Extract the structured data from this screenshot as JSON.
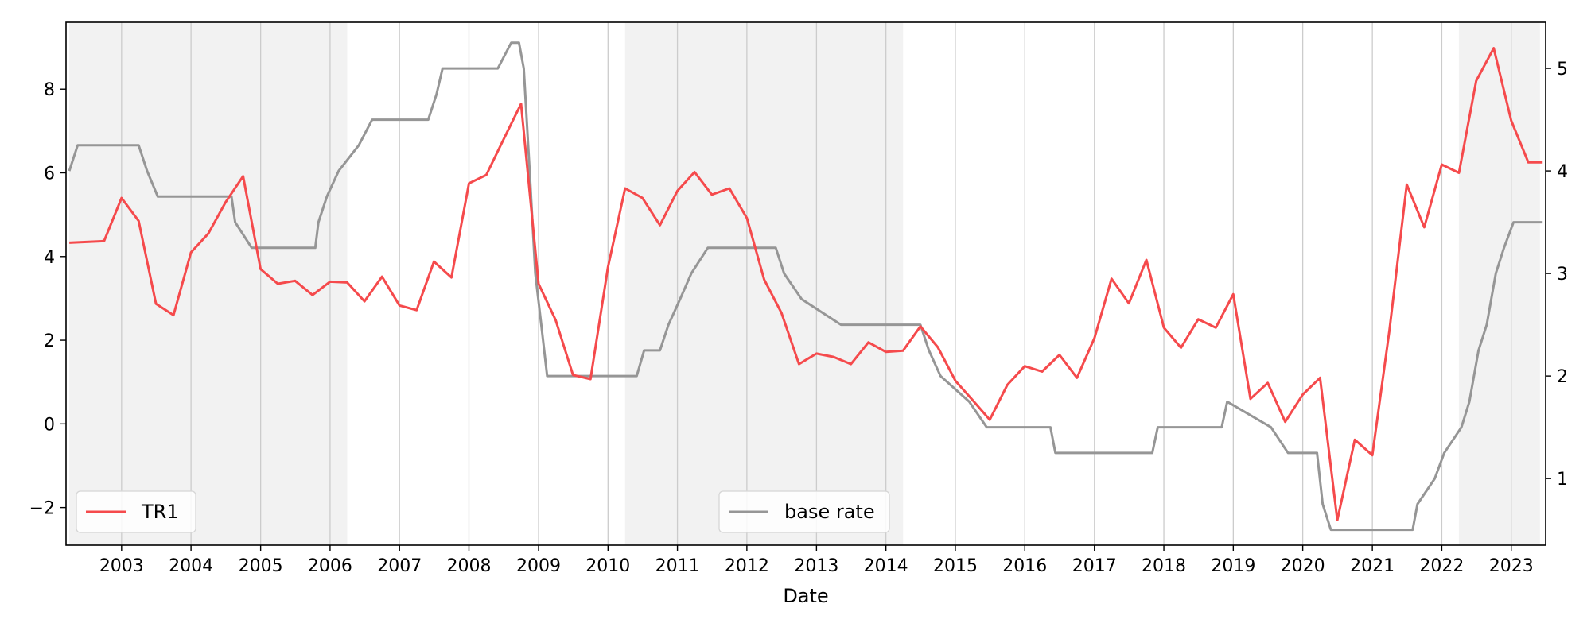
{
  "chart_data": {
    "type": "line",
    "title": "",
    "xlabel": "Date",
    "ylabel": "",
    "ylabel_right": "",
    "x_ticks": [
      "2003",
      "2004",
      "2005",
      "2006",
      "2007",
      "2008",
      "2009",
      "2010",
      "2011",
      "2012",
      "2013",
      "2014",
      "2015",
      "2016",
      "2017",
      "2018",
      "2019",
      "2020",
      "2021",
      "2022",
      "2023"
    ],
    "x_range": [
      "2002-03-15",
      "2023-07-01"
    ],
    "y_left": {
      "range": [
        -2.9,
        9.6
      ],
      "ticks": [
        -2,
        0,
        2,
        4,
        6,
        8
      ]
    },
    "y_right": {
      "range": [
        0.35,
        5.45
      ],
      "ticks": [
        1,
        2,
        3,
        4,
        5
      ]
    },
    "grid": {
      "x": true,
      "y": false
    },
    "shaded_periods": [
      [
        "2002-04-01",
        "2006-04-01"
      ],
      [
        "2010-04-01",
        "2014-04-01"
      ],
      [
        "2022-04-01",
        "2023-06-01"
      ]
    ],
    "colors": {
      "TR1": "#f54a4c",
      "base_rate": "#969696",
      "shade": "#f2f2f2",
      "grid": "#cccccc"
    },
    "legends": [
      {
        "label": "TR1",
        "position": "lower-left",
        "series": "TR1"
      },
      {
        "label": "base rate",
        "position": "lower-center",
        "series": "base_rate"
      }
    ],
    "series": [
      {
        "name": "TR1",
        "axis": "left",
        "points": [
          [
            "2002-04-01",
            4.33
          ],
          [
            "2002-07-01",
            4.35
          ],
          [
            "2002-10-01",
            4.37
          ],
          [
            "2003-01-01",
            5.4
          ],
          [
            "2003-04-01",
            4.85
          ],
          [
            "2003-07-01",
            2.87
          ],
          [
            "2003-10-01",
            2.6
          ],
          [
            "2004-01-01",
            4.1
          ],
          [
            "2004-04-01",
            4.55
          ],
          [
            "2004-07-01",
            5.3
          ],
          [
            "2004-10-01",
            5.92
          ],
          [
            "2005-01-01",
            3.7
          ],
          [
            "2005-04-01",
            3.35
          ],
          [
            "2005-07-01",
            3.42
          ],
          [
            "2005-10-01",
            3.08
          ],
          [
            "2006-01-01",
            3.4
          ],
          [
            "2006-04-01",
            3.38
          ],
          [
            "2006-07-01",
            2.93
          ],
          [
            "2006-10-01",
            3.52
          ],
          [
            "2007-01-01",
            2.83
          ],
          [
            "2007-04-01",
            2.72
          ],
          [
            "2007-07-01",
            3.88
          ],
          [
            "2007-10-01",
            3.5
          ],
          [
            "2008-01-01",
            5.75
          ],
          [
            "2008-04-01",
            5.95
          ],
          [
            "2008-07-01",
            6.8
          ],
          [
            "2008-10-01",
            7.65
          ],
          [
            "2009-01-01",
            3.35
          ],
          [
            "2009-04-01",
            2.48
          ],
          [
            "2009-07-01",
            1.17
          ],
          [
            "2009-10-01",
            1.07
          ],
          [
            "2010-01-01",
            3.75
          ],
          [
            "2010-04-01",
            5.63
          ],
          [
            "2010-07-01",
            5.4
          ],
          [
            "2010-10-01",
            4.75
          ],
          [
            "2011-01-01",
            5.57
          ],
          [
            "2011-04-01",
            6.02
          ],
          [
            "2011-07-01",
            5.48
          ],
          [
            "2011-10-01",
            5.63
          ],
          [
            "2012-01-01",
            4.92
          ],
          [
            "2012-04-01",
            3.45
          ],
          [
            "2012-07-01",
            2.65
          ],
          [
            "2012-10-01",
            1.43
          ],
          [
            "2013-01-01",
            1.68
          ],
          [
            "2013-04-01",
            1.6
          ],
          [
            "2013-07-01",
            1.43
          ],
          [
            "2013-10-01",
            1.95
          ],
          [
            "2014-01-01",
            1.72
          ],
          [
            "2014-04-01",
            1.75
          ],
          [
            "2014-07-01",
            2.33
          ],
          [
            "2014-10-01",
            1.83
          ],
          [
            "2015-01-01",
            1.03
          ],
          [
            "2015-04-01",
            0.57
          ],
          [
            "2015-07-01",
            0.1
          ],
          [
            "2015-10-01",
            0.93
          ],
          [
            "2016-01-01",
            1.38
          ],
          [
            "2016-04-01",
            1.25
          ],
          [
            "2016-07-01",
            1.65
          ],
          [
            "2016-10-01",
            1.1
          ],
          [
            "2017-01-01",
            2.05
          ],
          [
            "2017-04-01",
            3.47
          ],
          [
            "2017-07-01",
            2.88
          ],
          [
            "2017-10-01",
            3.92
          ],
          [
            "2018-01-01",
            2.3
          ],
          [
            "2018-04-01",
            1.82
          ],
          [
            "2018-07-01",
            2.5
          ],
          [
            "2018-10-01",
            2.3
          ],
          [
            "2019-01-01",
            3.1
          ],
          [
            "2019-04-01",
            0.6
          ],
          [
            "2019-07-01",
            0.98
          ],
          [
            "2019-10-01",
            0.05
          ],
          [
            "2020-01-01",
            0.7
          ],
          [
            "2020-04-01",
            1.1
          ],
          [
            "2020-07-01",
            -2.3
          ],
          [
            "2020-10-01",
            -0.38
          ],
          [
            "2021-01-01",
            -0.75
          ],
          [
            "2021-04-01",
            2.25
          ],
          [
            "2021-07-01",
            5.72
          ],
          [
            "2021-10-01",
            4.7
          ],
          [
            "2022-01-01",
            6.2
          ],
          [
            "2022-04-01",
            6.0
          ],
          [
            "2022-07-01",
            8.2
          ],
          [
            "2022-10-01",
            8.98
          ],
          [
            "2023-01-01",
            7.25
          ],
          [
            "2023-04-01",
            6.25
          ],
          [
            "2023-06-15",
            6.25
          ]
        ]
      },
      {
        "name": "base rate",
        "axis": "right",
        "points": [
          [
            "2002-04-01",
            4.0
          ],
          [
            "2002-05-15",
            4.25
          ],
          [
            "2002-08-01",
            4.25
          ],
          [
            "2003-01-01",
            4.25
          ],
          [
            "2003-04-01",
            4.25
          ],
          [
            "2003-05-15",
            4.0
          ],
          [
            "2003-07-10",
            3.75
          ],
          [
            "2004-01-01",
            3.75
          ],
          [
            "2004-08-01",
            3.75
          ],
          [
            "2004-08-20",
            3.5
          ],
          [
            "2004-11-15",
            3.25
          ],
          [
            "2005-06-01",
            3.25
          ],
          [
            "2005-10-15",
            3.25
          ],
          [
            "2005-11-01",
            3.5
          ],
          [
            "2005-12-15",
            3.75
          ],
          [
            "2006-02-15",
            4.0
          ],
          [
            "2006-06-01",
            4.25
          ],
          [
            "2006-08-10",
            4.5
          ],
          [
            "2007-06-01",
            4.5
          ],
          [
            "2007-07-15",
            4.75
          ],
          [
            "2007-08-15",
            5.0
          ],
          [
            "2008-06-01",
            5.0
          ],
          [
            "2008-08-10",
            5.25
          ],
          [
            "2008-09-20",
            5.25
          ],
          [
            "2008-10-15",
            5.0
          ],
          [
            "2008-11-15",
            4.0
          ],
          [
            "2008-12-15",
            3.0
          ],
          [
            "2009-01-15",
            2.5
          ],
          [
            "2009-02-15",
            2.0
          ],
          [
            "2010-06-01",
            2.0
          ],
          [
            "2010-07-10",
            2.25
          ],
          [
            "2010-10-01",
            2.25
          ],
          [
            "2010-11-15",
            2.5
          ],
          [
            "2011-01-15",
            2.75
          ],
          [
            "2011-03-15",
            3.0
          ],
          [
            "2011-06-10",
            3.25
          ],
          [
            "2012-06-01",
            3.25
          ],
          [
            "2012-07-15",
            3.0
          ],
          [
            "2012-10-15",
            2.75
          ],
          [
            "2013-05-10",
            2.5
          ],
          [
            "2014-07-01",
            2.5
          ],
          [
            "2014-08-15",
            2.25
          ],
          [
            "2014-10-15",
            2.0
          ],
          [
            "2015-03-15",
            1.75
          ],
          [
            "2015-06-15",
            1.5
          ],
          [
            "2016-05-15",
            1.5
          ],
          [
            "2016-06-10",
            1.25
          ],
          [
            "2017-11-01",
            1.25
          ],
          [
            "2017-11-30",
            1.5
          ],
          [
            "2018-11-01",
            1.5
          ],
          [
            "2018-11-30",
            1.75
          ],
          [
            "2019-07-18",
            1.5
          ],
          [
            "2019-10-16",
            1.25
          ],
          [
            "2020-03-16",
            1.25
          ],
          [
            "2020-04-15",
            0.75
          ],
          [
            "2020-05-28",
            0.5
          ],
          [
            "2021-08-01",
            0.5
          ],
          [
            "2021-08-26",
            0.75
          ],
          [
            "2021-11-25",
            1.0
          ],
          [
            "2022-01-14",
            1.25
          ],
          [
            "2022-04-14",
            1.5
          ],
          [
            "2022-05-26",
            1.75
          ],
          [
            "2022-07-13",
            2.25
          ],
          [
            "2022-08-25",
            2.5
          ],
          [
            "2022-10-12",
            3.0
          ],
          [
            "2022-11-24",
            3.25
          ],
          [
            "2023-01-13",
            3.5
          ],
          [
            "2023-06-15",
            3.5
          ]
        ]
      }
    ]
  }
}
